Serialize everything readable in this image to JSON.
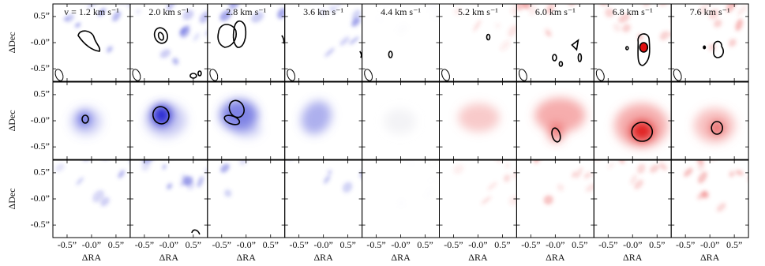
{
  "chart_data": {
    "type": "image-grid",
    "panel_labels": [
      "v = 1.2 km s⁻¹",
      "2.0 km s⁻¹",
      "2.8 km s⁻¹",
      "3.6 km s⁻¹",
      "4.4 km s⁻¹",
      "5.2 km s⁻¹",
      "6.0 km s⁻¹",
      "6.8 km s⁻¹",
      "7.6 km s⁻¹"
    ],
    "xlabel": "ΔRA",
    "ylabel": "ΔDec",
    "xlim": [
      -0.79,
      0.79
    ],
    "ylim": [
      -0.74,
      0.74
    ],
    "xticks": [
      {
        "value": -0.5,
        "label": "-0.5”"
      },
      {
        "value": 0,
        "label": "-0.0”"
      },
      {
        "value": 0.5,
        "label": "0.5”"
      }
    ],
    "yticks": [
      {
        "value": 0.5,
        "label": "0.5”"
      },
      {
        "value": 0,
        "label": "-0.0”"
      },
      {
        "value": -0.5,
        "label": "-0.5”"
      }
    ]
  }
}
